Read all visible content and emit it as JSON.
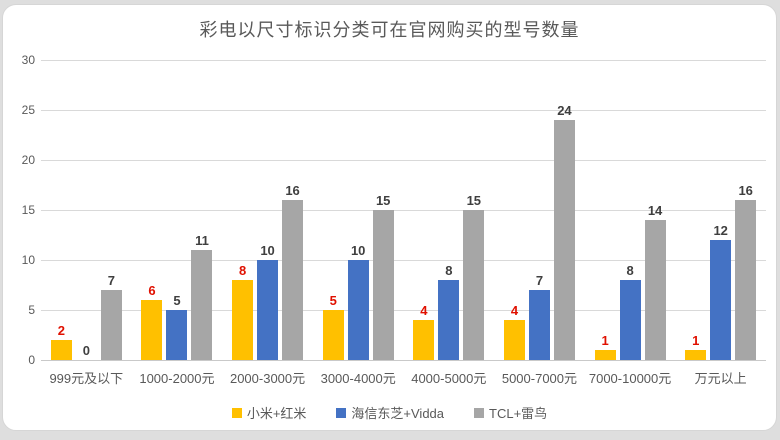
{
  "chart_data": {
    "type": "bar",
    "title": "彩电以尺寸标识分类可在官网购买的型号数量",
    "categories": [
      "999元及以下",
      "1000-2000元",
      "2000-3000元",
      "3000-4000元",
      "4000-5000元",
      "5000-7000元",
      "7000-10000元",
      "万元以上"
    ],
    "series": [
      {
        "name": "小米+红米",
        "color": "#FFC000",
        "label_color": "#e01000",
        "values": [
          2,
          6,
          8,
          5,
          4,
          4,
          1,
          1
        ]
      },
      {
        "name": "海信东芝+Vidda",
        "color": "#4472C4",
        "label_color": "#3f3f3f",
        "values": [
          0,
          5,
          10,
          10,
          8,
          7,
          8,
          12
        ]
      },
      {
        "name": "TCL+雷鸟",
        "color": "#A6A6A6",
        "label_color": "#3f3f3f",
        "values": [
          7,
          11,
          16,
          15,
          15,
          24,
          14,
          16
        ]
      }
    ],
    "ylim": [
      0,
      30
    ],
    "yticks": [
      0,
      5,
      10,
      15,
      20,
      25,
      30
    ],
    "grid": true,
    "legend_position": "bottom",
    "xlabel": "",
    "ylabel": ""
  }
}
